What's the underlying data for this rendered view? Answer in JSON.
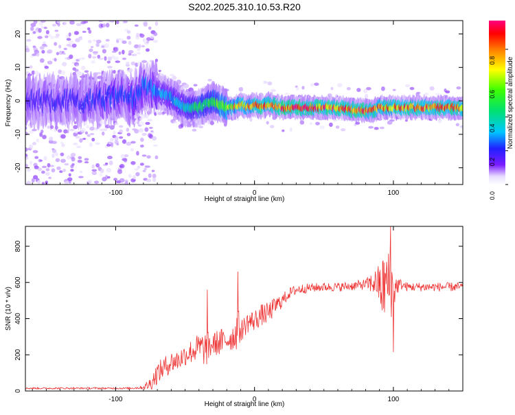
{
  "title": "S202.2025.310.10.53.R20",
  "chart_data": [
    {
      "type": "heatmap",
      "xlabel": "Height of straight line (km)",
      "ylabel": "Frequency (Hz)",
      "xlim": [
        -165,
        150
      ],
      "ylim": [
        -25,
        24
      ],
      "xticks": [
        -100,
        0,
        100
      ],
      "yticks": [
        -20,
        -10,
        0,
        10,
        20
      ],
      "colorbar": {
        "label": "Normalized spectral amplitude",
        "range": [
          0,
          0.97
        ],
        "ticks": [
          "0.0",
          "0.2",
          "0.4",
          "0.6",
          "0.8"
        ]
      },
      "ridge": {
        "description_free": true,
        "x": [
          -160,
          -140,
          -120,
          -100,
          -85,
          -80,
          -70,
          -60,
          -50,
          -40,
          -30,
          -25,
          -20,
          -15,
          -10,
          -5,
          0,
          5,
          10,
          20,
          40,
          60,
          80,
          85,
          90,
          100,
          120,
          150
        ],
        "freq": [
          0,
          0,
          0,
          1,
          1,
          4,
          3,
          1,
          -2,
          -2,
          0,
          -1,
          -2,
          -2,
          -1,
          -2,
          -1,
          -2,
          -1,
          -2,
          -2,
          -2,
          -3,
          -3,
          -2,
          -2,
          -2,
          -2
        ],
        "amp": [
          0.2,
          0.2,
          0.22,
          0.25,
          0.25,
          0.3,
          0.3,
          0.35,
          0.4,
          0.5,
          0.55,
          0.6,
          0.7,
          0.75,
          0.8,
          0.8,
          0.85,
          0.85,
          0.85,
          0.95,
          0.95,
          0.9,
          0.95,
          0.9,
          0.85,
          0.85,
          0.9,
          0.9
        ]
      }
    },
    {
      "type": "line",
      "xlabel": "Height of straight line (km)",
      "ylabel": "SNR (10 * v/v)",
      "xlim": [
        -165,
        150
      ],
      "ylim": [
        0,
        910
      ],
      "xticks": [
        -100,
        0,
        100
      ],
      "yticks": [
        0,
        200,
        400,
        600,
        800
      ],
      "color": "#ee3333",
      "x": [
        -165,
        -150,
        -130,
        -110,
        -90,
        -80,
        -75,
        -70,
        -65,
        -60,
        -55,
        -50,
        -45,
        -40,
        -35,
        -30,
        -25,
        -20,
        -15,
        -12,
        -10,
        -5,
        0,
        5,
        10,
        15,
        20,
        25,
        30,
        40,
        50,
        60,
        70,
        80,
        88,
        92,
        95,
        98,
        100,
        102,
        105,
        110,
        120,
        130,
        140,
        150
      ],
      "y": [
        15,
        15,
        15,
        15,
        15,
        20,
        40,
        100,
        130,
        160,
        170,
        200,
        220,
        240,
        230,
        260,
        270,
        280,
        300,
        350,
        330,
        380,
        390,
        420,
        430,
        470,
        500,
        540,
        560,
        570,
        575,
        575,
        580,
        590,
        600,
        560,
        600,
        580,
        560,
        580,
        590,
        575,
        575,
        575,
        575,
        575
      ],
      "spread": [
        5,
        5,
        5,
        5,
        5,
        10,
        40,
        60,
        60,
        60,
        60,
        60,
        70,
        80,
        100,
        60,
        80,
        60,
        80,
        120,
        60,
        60,
        60,
        60,
        60,
        50,
        40,
        30,
        30,
        25,
        25,
        25,
        25,
        30,
        80,
        180,
        200,
        180,
        150,
        60,
        30,
        25,
        25,
        25,
        25,
        25
      ],
      "spikes": [
        {
          "x": -34,
          "y": 560
        },
        {
          "x": -12,
          "y": 660
        },
        {
          "x": 98,
          "y": 910
        },
        {
          "x": 100,
          "y": 215
        }
      ]
    }
  ]
}
